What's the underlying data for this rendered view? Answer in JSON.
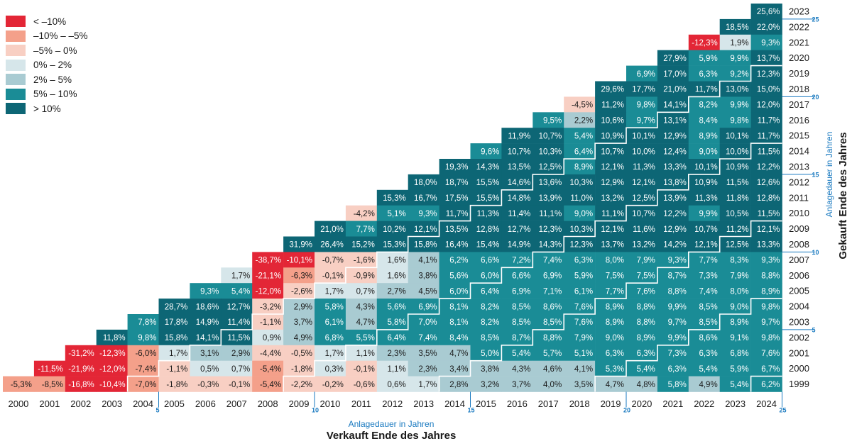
{
  "chart_data": {
    "type": "heatmap",
    "title": "",
    "xlabel": "Verkauft Ende des Jahres",
    "xlabel_secondary": "Anlagedauer in Jahren",
    "ylabel": "Gekauft Ende des Jahres",
    "ylabel_secondary": "Anlagedauer in Jahren",
    "sell_years": [
      "2000",
      "2001",
      "2002",
      "2003",
      "2004",
      "2005",
      "2006",
      "2007",
      "2008",
      "2009",
      "2010",
      "2011",
      "2012",
      "2013",
      "2014",
      "2015",
      "2016",
      "2017",
      "2018",
      "2019",
      "2020",
      "2021",
      "2022",
      "2023",
      "2024"
    ],
    "buy_years": [
      "2023",
      "2022",
      "2021",
      "2020",
      "2019",
      "2018",
      "2017",
      "2016",
      "2015",
      "2014",
      "2013",
      "2012",
      "2011",
      "2010",
      "2009",
      "2008",
      "2007",
      "2006",
      "2005",
      "2004",
      "2003",
      "2002",
      "2001",
      "2000",
      "1999"
    ],
    "holding_period_ticks": [
      "5",
      "10",
      "15",
      "20",
      "25"
    ],
    "legend": [
      {
        "label": "< –10%",
        "color": "#e32636"
      },
      {
        "label": "–10% – –5%",
        "color": "#f4a08a"
      },
      {
        "label": "–5% – 0%",
        "color": "#f8cfc3"
      },
      {
        "label": "0% – 2%",
        "color": "#d6e6ea"
      },
      {
        "label": "2% – 5%",
        "color": "#a9cbd2"
      },
      {
        "label": "5% – 10%",
        "color": "#1a8c96"
      },
      {
        "label": "> 10%",
        "color": "#0d6675"
      }
    ],
    "rows": {
      "2023": [
        "25,6%"
      ],
      "2022": [
        "18,5%",
        "22,0%"
      ],
      "2021": [
        "-12,3%",
        "1,9%",
        "9,3%"
      ],
      "2020": [
        "27,9%",
        "5,9%",
        "9,9%",
        "13,7%"
      ],
      "2019": [
        "6,9%",
        "17,0%",
        "6,3%",
        "9,2%",
        "12,3%"
      ],
      "2018": [
        "29,6%",
        "17,7%",
        "21,0%",
        "11,7%",
        "13,0%",
        "15,0%"
      ],
      "2017": [
        "-4,5%",
        "11,2%",
        "9,8%",
        "14,1%",
        "8,2%",
        "9,9%",
        "12,0%"
      ],
      "2016": [
        "9,5%",
        "2,2%",
        "10,6%",
        "9,7%",
        "13,1%",
        "8,4%",
        "9,8%",
        "11,7%"
      ],
      "2015": [
        "11,9%",
        "10,7%",
        "5,4%",
        "10,9%",
        "10,1%",
        "12,9%",
        "8,9%",
        "10,1%",
        "11,7%"
      ],
      "2014": [
        "9,6%",
        "10,7%",
        "10,3%",
        "6,4%",
        "10,7%",
        "10,0%",
        "12,4%",
        "9,0%",
        "10,0%",
        "11,5%"
      ],
      "2013": [
        "19,3%",
        "14,3%",
        "13,5%",
        "12,5%",
        "8,9%",
        "12,1%",
        "11,3%",
        "13,3%",
        "10,1%",
        "10,9%",
        "12,2%"
      ],
      "2012": [
        "18,0%",
        "18,7%",
        "15,5%",
        "14,6%",
        "13,6%",
        "10,3%",
        "12,9%",
        "12,1%",
        "13,8%",
        "10,9%",
        "11,5%",
        "12,6%"
      ],
      "2011": [
        "15,3%",
        "16,7%",
        "17,5%",
        "15,5%",
        "14,8%",
        "13,9%",
        "11,0%",
        "13,2%",
        "12,5%",
        "13,9%",
        "11,3%",
        "11,8%",
        "12,8%"
      ],
      "2010": [
        "-4,2%",
        "5,1%",
        "9,3%",
        "11,7%",
        "11,3%",
        "11,4%",
        "11,1%",
        "9,0%",
        "11,1%",
        "10,7%",
        "12,2%",
        "9,9%",
        "10,5%",
        "11,5%"
      ],
      "2009": [
        "21,0%",
        "7,7%",
        "10,2%",
        "12,1%",
        "13,5%",
        "12,8%",
        "12,7%",
        "12,3%",
        "10,3%",
        "12,1%",
        "11,6%",
        "12,9%",
        "10,7%",
        "11,2%",
        "12,1%"
      ],
      "2008": [
        "31,9%",
        "26,4%",
        "15,2%",
        "15,3%",
        "15,8%",
        "16,4%",
        "15,4%",
        "14,9%",
        "14,3%",
        "12,3%",
        "13,7%",
        "13,2%",
        "14,2%",
        "12,1%",
        "12,5%",
        "13,3%"
      ],
      "2007": [
        "-38,7%",
        "-10,1%",
        "-0,7%",
        "-1,6%",
        "1,6%",
        "4,1%",
        "6,2%",
        "6,6%",
        "7,2%",
        "7,4%",
        "6,3%",
        "8,0%",
        "7,9%",
        "9,3%",
        "7,7%",
        "8,3%",
        "9,3%"
      ],
      "2006": [
        "1,7%",
        "-21,1%",
        "-6,3%",
        "-0,1%",
        "-0,9%",
        "1,6%",
        "3,8%",
        "5,6%",
        "6,0%",
        "6,6%",
        "6,9%",
        "5,9%",
        "7,5%",
        "7,5%",
        "8,7%",
        "7,3%",
        "7,9%",
        "8,8%"
      ],
      "2005": [
        "9,3%",
        "5,4%",
        "-12,0%",
        "-2,6%",
        "1,7%",
        "0,7%",
        "2,7%",
        "4,5%",
        "6,0%",
        "6,4%",
        "6,9%",
        "7,1%",
        "6,1%",
        "7,7%",
        "7,6%",
        "8,8%",
        "7,4%",
        "8,0%",
        "8,9%"
      ],
      "2004": [
        "28,7%",
        "18,6%",
        "12,7%",
        "-3,2%",
        "2,9%",
        "5,8%",
        "4,3%",
        "5,6%",
        "6,9%",
        "8,1%",
        "8,2%",
        "8,5%",
        "8,6%",
        "7,6%",
        "8,9%",
        "8,8%",
        "9,9%",
        "8,5%",
        "9,0%",
        "9,8%"
      ],
      "2003": [
        "7,8%",
        "17,8%",
        "14,9%",
        "11,4%",
        "-1,1%",
        "3,7%",
        "6,1%",
        "4,7%",
        "5,8%",
        "7,0%",
        "8,1%",
        "8,2%",
        "8,5%",
        "8,5%",
        "7,6%",
        "8,9%",
        "8,8%",
        "9,7%",
        "8,5%",
        "8,9%",
        "9,7%"
      ],
      "2002": [
        "11,8%",
        "9,8%",
        "15,8%",
        "14,1%",
        "11,5%",
        "0,9%",
        "4,9%",
        "6,8%",
        "5,5%",
        "6,4%",
        "7,4%",
        "8,4%",
        "8,5%",
        "8,7%",
        "8,8%",
        "7,9%",
        "9,0%",
        "8,9%",
        "9,9%",
        "8,6%",
        "9,1%",
        "9,8%"
      ],
      "2001": [
        "-31,2%",
        "-12,3%",
        "-6,0%",
        "1,7%",
        "3,1%",
        "2,9%",
        "-4,4%",
        "-0,5%",
        "1,7%",
        "1,1%",
        "2,3%",
        "3,5%",
        "4,7%",
        "5,0%",
        "5,4%",
        "5,7%",
        "5,1%",
        "6,3%",
        "6,3%",
        "7,3%",
        "6,3%",
        "6,8%",
        "7,6%"
      ],
      "2000": [
        "-11,5%",
        "-21,9%",
        "-12,0%",
        "-7,4%",
        "-1,1%",
        "0,5%",
        "0,7%",
        "-5,4%",
        "-1,8%",
        "0,3%",
        "-0,1%",
        "1,1%",
        "2,3%",
        "3,4%",
        "3,8%",
        "4,3%",
        "4,6%",
        "4,1%",
        "5,3%",
        "5,4%",
        "6,3%",
        "5,4%",
        "5,9%",
        "6,7%"
      ],
      "1999": [
        "-5,3%",
        "-8,5%",
        "-16,8%",
        "-10,4%",
        "-7,0%",
        "-1,8%",
        "-0,3%",
        "-0,1%",
        "-5,4%",
        "-2,2%",
        "-0,2%",
        "-0,6%",
        "0,6%",
        "1,7%",
        "2,8%",
        "3,2%",
        "3,7%",
        "4,0%",
        "3,5%",
        "4,7%",
        "4,8%",
        "5,8%",
        "4,9%",
        "5,4%",
        "6,2%"
      ]
    }
  }
}
